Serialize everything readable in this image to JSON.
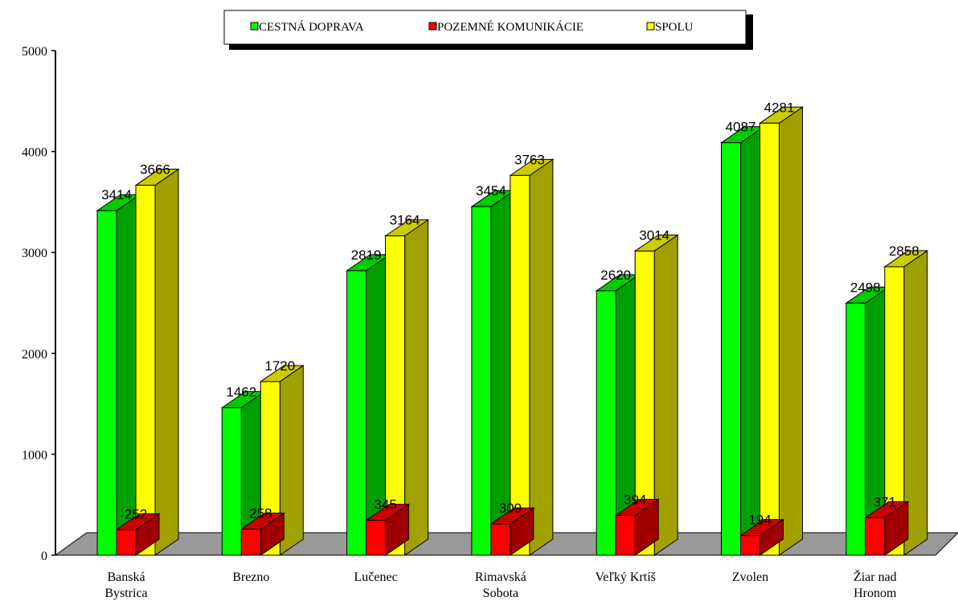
{
  "chart_data": {
    "type": "bar",
    "categories": [
      [
        "Banská",
        "Bystrica"
      ],
      [
        "Brezno"
      ],
      [
        "Lučenec"
      ],
      [
        "Rimavská",
        "Sobota"
      ],
      [
        "Veľký Krtíš"
      ],
      [
        "Zvolen"
      ],
      [
        "Žiar nad",
        "Hronom"
      ]
    ],
    "series": [
      {
        "name": "CESTNÁ DOPRAVA",
        "values": [
          3414,
          1462,
          2819,
          3454,
          2620,
          4087,
          2498
        ],
        "color": "#00ff00",
        "side_color": "#00a000",
        "top_color": "#00cc00"
      },
      {
        "name": "POZEMNÉ KOMUNIKÁCIE",
        "values": [
          252,
          258,
          345,
          309,
          394,
          194,
          371
        ],
        "color": "#ff0000",
        "side_color": "#a00000",
        "top_color": "#cc0000"
      },
      {
        "name": "SPOLU",
        "values": [
          3666,
          1720,
          3164,
          3763,
          3014,
          4281,
          2858
        ],
        "color": "#ffff00",
        "side_color": "#a0a000",
        "top_color": "#cccc00"
      }
    ],
    "yticks": [
      "0",
      "1000",
      "2000",
      "3000",
      "4000",
      "5000"
    ],
    "ylim": [
      0,
      5000
    ],
    "legend_position": "top-center",
    "floor_color": "#999999"
  }
}
